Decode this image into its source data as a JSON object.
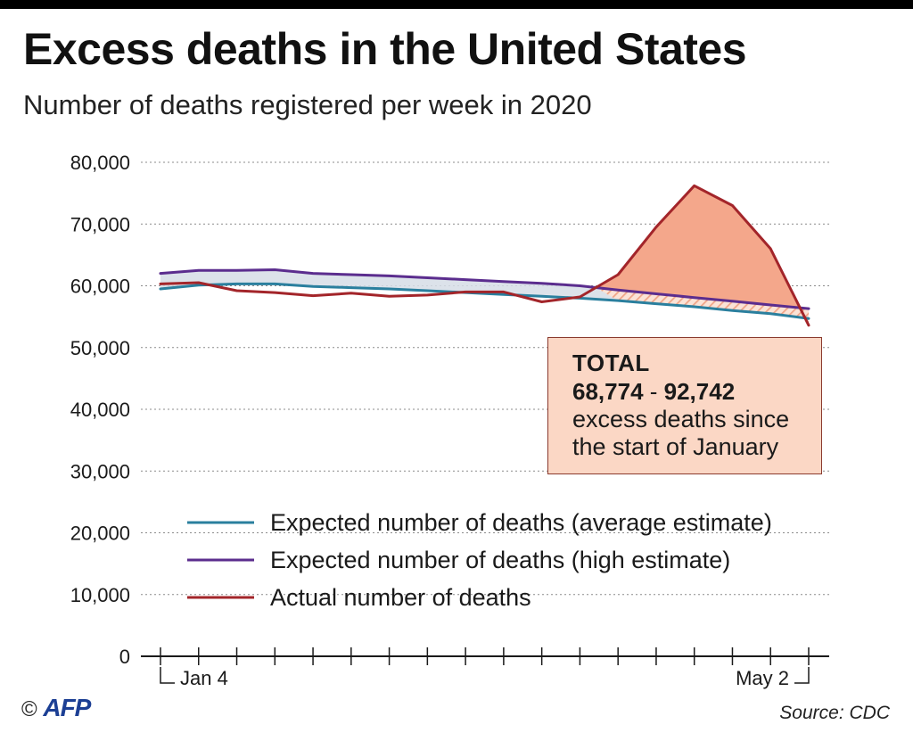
{
  "header": {
    "title": "Excess deaths in the United States",
    "subtitle": "Number of deaths registered per week in 2020"
  },
  "annotation": {
    "heading": "TOTAL",
    "range_low": "68,774",
    "range_sep": " - ",
    "range_high": "92,742",
    "line1": "excess deaths since",
    "line2": "the start of January"
  },
  "footer": {
    "copyright": "©",
    "logo": "AFP",
    "source": "Source: CDC"
  },
  "colors": {
    "average": "#2a7f9e",
    "high": "#5b2d8e",
    "actual": "#a3252a",
    "excess_fill": "#f4a78b",
    "gap_fill": "#d6dde6"
  },
  "chart_data": {
    "type": "line",
    "title": "Excess deaths in the United States",
    "subtitle": "Number of deaths registered per week in 2020",
    "x_start_label": "Jan 4",
    "x_end_label": "May 2",
    "y_ticks": [
      "0",
      "10,000",
      "20,000",
      "30,000",
      "40,000",
      "50,000",
      "60,000",
      "70,000",
      "80,000"
    ],
    "ylim": [
      0,
      80000
    ],
    "grid": "horizontal dotted",
    "legend_position": "lower-left",
    "series": [
      {
        "name": "Expected number of deaths (average estimate)",
        "values": [
          59500,
          60100,
          60300,
          60300,
          59900,
          59700,
          59500,
          59200,
          58900,
          58600,
          58300,
          58000,
          57600,
          57100,
          56600,
          56000,
          55500,
          54700
        ]
      },
      {
        "name": "Expected number of deaths (high estimate)",
        "values": [
          62000,
          62500,
          62500,
          62600,
          62000,
          61800,
          61600,
          61300,
          61000,
          60700,
          60400,
          60000,
          59300,
          58700,
          58100,
          57500,
          56900,
          56300
        ]
      },
      {
        "name": "Actual number of deaths",
        "values": [
          60300,
          60500,
          59200,
          58900,
          58400,
          58800,
          58300,
          58500,
          59000,
          59000,
          57400,
          58200,
          61800,
          69500,
          76200,
          73000,
          66000,
          53600
        ]
      }
    ]
  }
}
